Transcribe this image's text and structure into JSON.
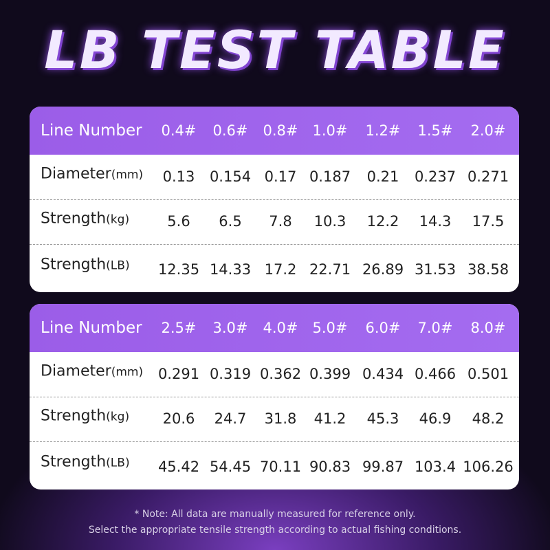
{
  "title": "LB TEST TABLE",
  "tables": [
    {
      "header": {
        "label": "Line Number",
        "cells": [
          "0.4#",
          "0.6#",
          "0.8#",
          "1.0#",
          "1.2#",
          "1.5#",
          "2.0#"
        ]
      },
      "rows": [
        {
          "label": "Diameter",
          "unit": "(mm)",
          "cells": [
            "0.13",
            "0.154",
            "0.17",
            "0.187",
            "0.21",
            "0.237",
            "0.271"
          ]
        },
        {
          "label": "Strength",
          "unit": "(kg)",
          "cells": [
            "5.6",
            "6.5",
            "7.8",
            "10.3",
            "12.2",
            "14.3",
            "17.5"
          ]
        },
        {
          "label": "Strength",
          "unit": "(LB)",
          "cells": [
            "12.35",
            "14.33",
            "17.2",
            "22.71",
            "26.89",
            "31.53",
            "38.58"
          ]
        }
      ]
    },
    {
      "header": {
        "label": "Line Number",
        "cells": [
          "2.5#",
          "3.0#",
          "4.0#",
          "5.0#",
          "6.0#",
          "7.0#",
          "8.0#"
        ]
      },
      "rows": [
        {
          "label": "Diameter",
          "unit": "(mm)",
          "cells": [
            "0.291",
            "0.319",
            "0.362",
            "0.399",
            "0.434",
            "0.466",
            "0.501"
          ]
        },
        {
          "label": "Strength",
          "unit": "(kg)",
          "cells": [
            "20.6",
            "24.7",
            "31.8",
            "41.2",
            "45.3",
            "46.9",
            "48.2"
          ]
        },
        {
          "label": "Strength",
          "unit": "(LB)",
          "cells": [
            "45.42",
            "54.45",
            "70.11",
            "90.83",
            "99.87",
            "103.4",
            "106.26"
          ]
        }
      ]
    }
  ],
  "note": [
    "* Note: All data are manually measured for reference only.",
    "Select the appropriate tensile strength according to actual fishing conditions."
  ]
}
